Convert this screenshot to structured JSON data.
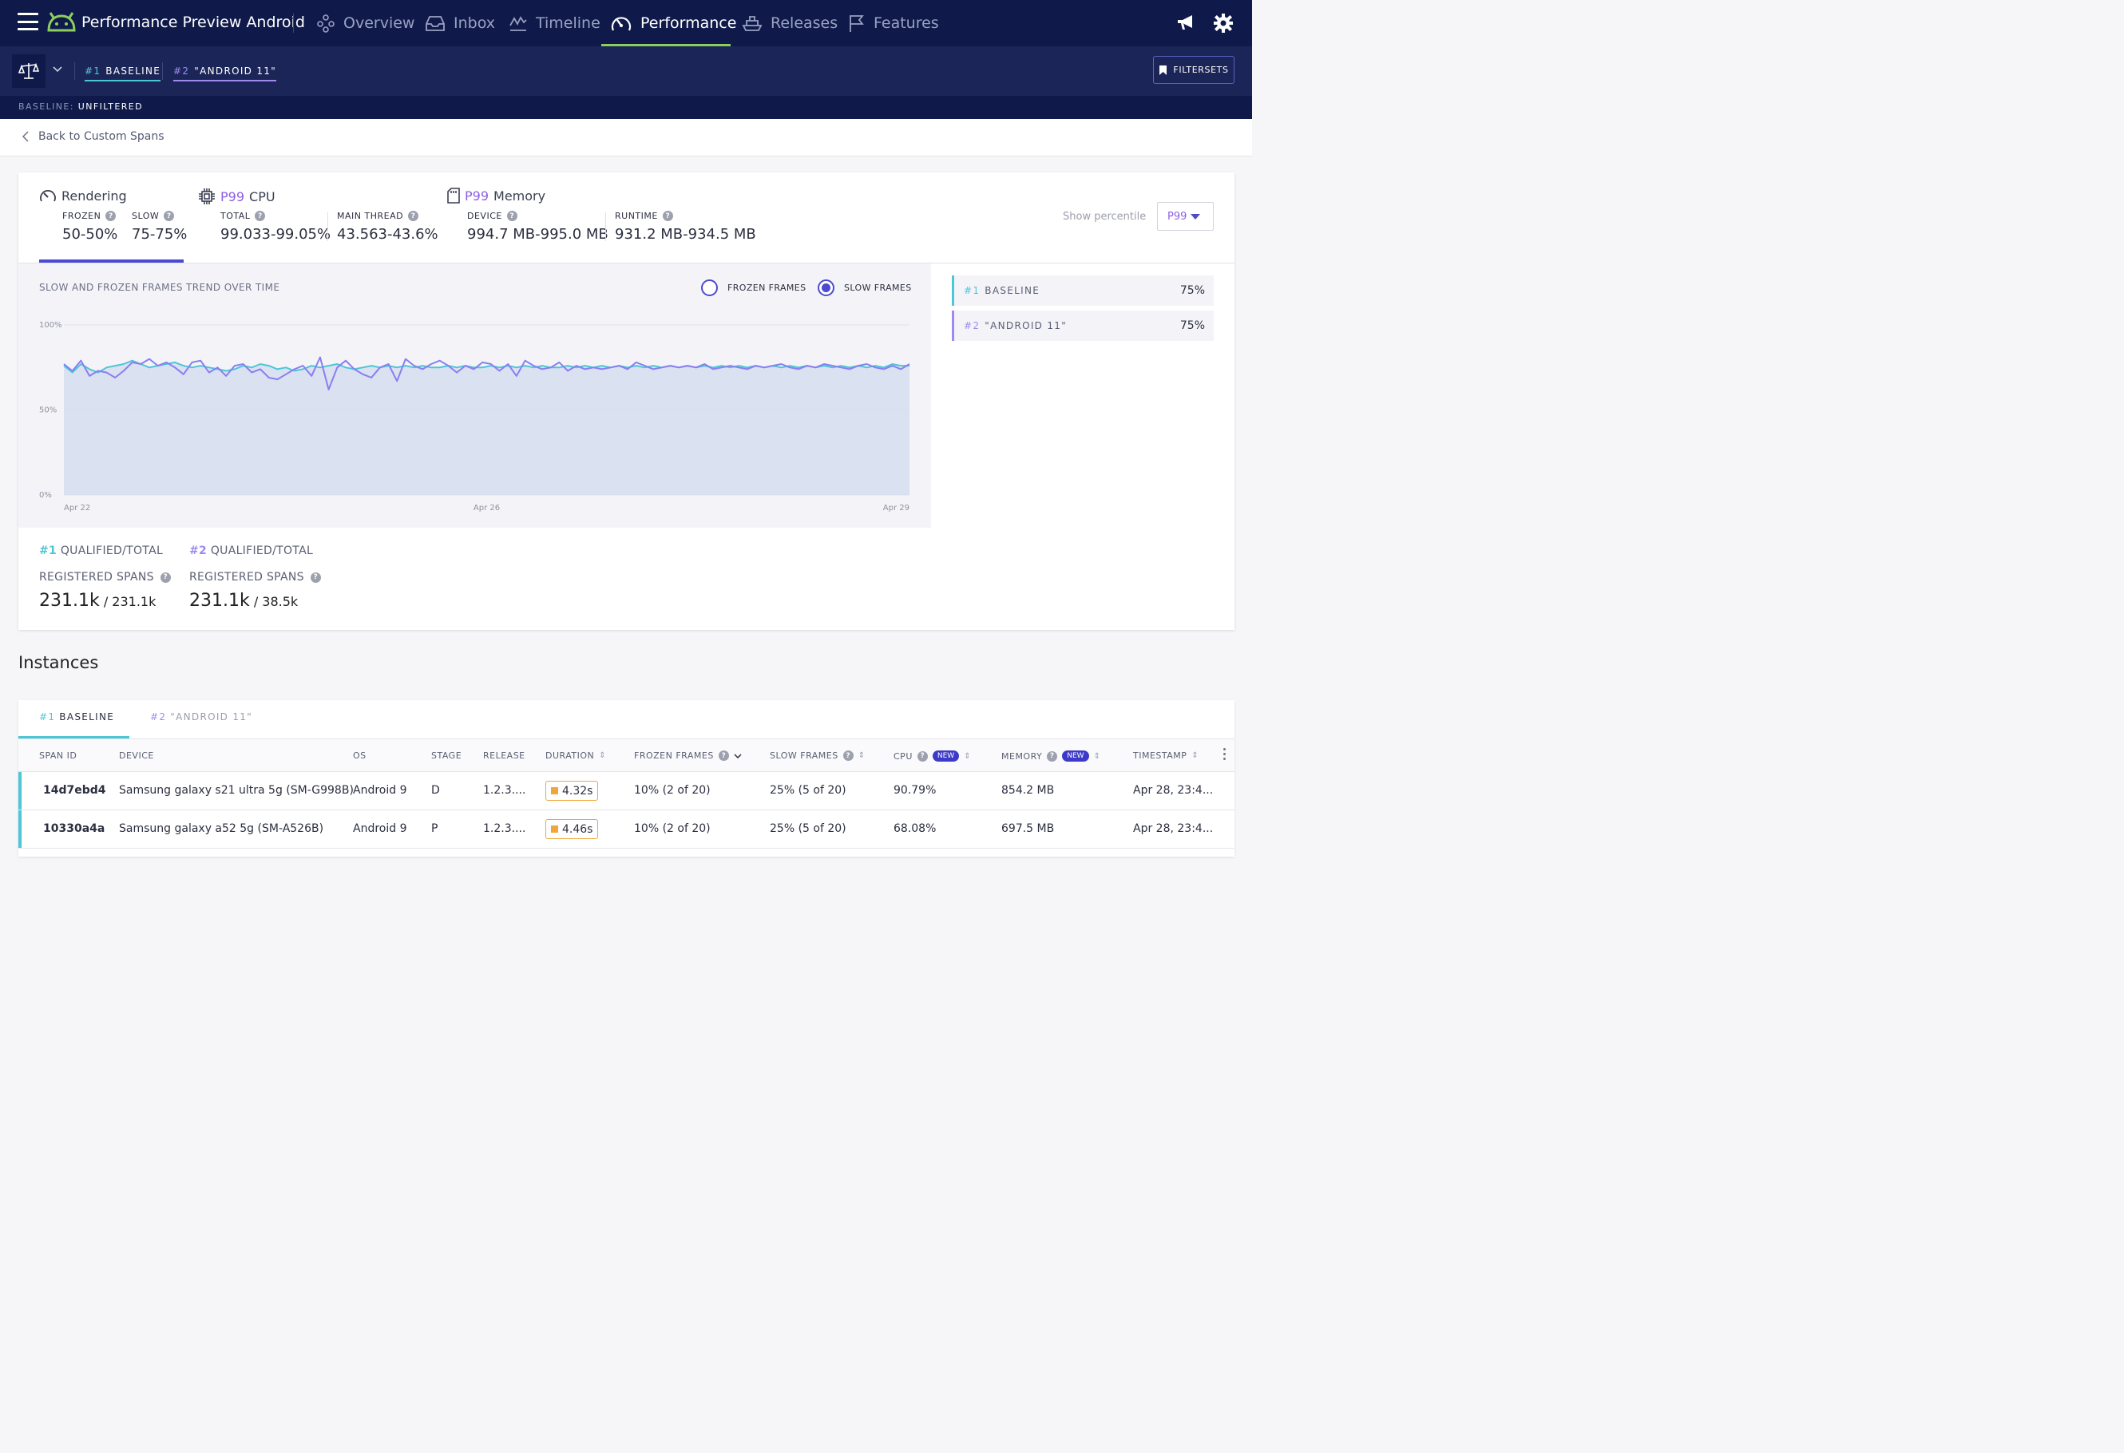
{
  "app": {
    "title": "Performance Preview Android"
  },
  "nav": {
    "tabs": [
      {
        "label": "Overview",
        "icon": "overview-icon"
      },
      {
        "label": "Inbox",
        "icon": "inbox-icon"
      },
      {
        "label": "Timeline",
        "icon": "timeline-icon"
      },
      {
        "label": "Performance",
        "icon": "performance-gauge-icon",
        "active": true
      },
      {
        "label": "Releases",
        "icon": "releases-ship-icon"
      },
      {
        "label": "Features",
        "icon": "features-flag-icon"
      }
    ]
  },
  "compare": {
    "tab1_num": "#1",
    "tab1_label": "BASELINE",
    "tab2_num": "#2",
    "tab2_label": "\"ANDROID 11\"",
    "filtersets_label": "FILTERSETS"
  },
  "baseline_bar": {
    "prefix": "BASELINE:",
    "value": "UNFILTERED"
  },
  "back_link": "Back to Custom Spans",
  "metrics": {
    "rendering": {
      "title": "Rendering",
      "frozen_label": "FROZEN",
      "frozen_value": "50-50%",
      "slow_label": "SLOW",
      "slow_value": "75-75%"
    },
    "cpu": {
      "pct": "P99",
      "title": "CPU",
      "total_label": "TOTAL",
      "total_value": "99.033-99.05%",
      "main_label": "MAIN THREAD",
      "main_value": "43.563-43.6%"
    },
    "memory": {
      "pct": "P99",
      "title": "Memory",
      "device_label": "DEVICE",
      "device_value": "994.7 MB-995.0 MB",
      "runtime_label": "RUNTIME",
      "runtime_value": "931.2 MB-934.5 MB"
    },
    "show_percentile_label": "Show percentile",
    "percentile_value": "P99"
  },
  "chart_data": {
    "type": "area",
    "title": "SLOW AND FROZEN FRAMES TREND OVER TIME",
    "legend": [
      {
        "label": "FROZEN FRAMES",
        "selected": false
      },
      {
        "label": "SLOW FRAMES",
        "selected": true
      }
    ],
    "y_ticks": [
      "100%",
      "50%",
      "0%"
    ],
    "ylim": [
      0,
      100
    ],
    "x_ticks": [
      "Apr 22",
      "Apr 26",
      "Apr 29"
    ],
    "series": [
      {
        "name": "#1 BASELINE",
        "color": "#4dc6d6",
        "values": [
          76,
          72,
          77,
          74,
          72,
          75,
          76,
          77,
          79,
          77,
          75,
          76,
          77,
          78,
          76,
          75,
          76,
          75,
          74,
          73,
          74,
          76,
          75,
          77,
          76,
          74,
          75,
          73,
          74,
          76,
          75,
          76,
          77,
          75,
          74,
          75,
          76,
          75,
          76,
          75,
          76,
          75,
          76,
          75,
          75,
          76,
          75,
          76,
          75,
          75,
          76,
          75,
          76,
          75,
          76,
          75,
          76,
          75,
          75,
          76,
          75,
          76,
          75,
          76,
          75,
          76,
          75,
          76,
          75,
          76,
          75,
          76,
          75,
          76,
          75,
          76,
          75,
          76,
          75,
          76,
          75,
          76,
          75,
          76,
          75,
          76,
          75,
          76,
          75,
          76,
          75,
          76,
          75,
          76,
          75,
          76,
          75,
          77,
          76,
          76
        ]
      },
      {
        "name": "#2 \"ANDROID 11\"",
        "color": "#8a7ef0",
        "values": [
          77,
          73,
          79,
          70,
          73,
          72,
          69,
          73,
          78,
          77,
          80,
          76,
          78,
          75,
          71,
          78,
          79,
          72,
          75,
          70,
          76,
          77,
          72,
          74,
          69,
          68,
          71,
          74,
          76,
          70,
          81,
          62,
          75,
          79,
          74,
          71,
          69,
          75,
          77,
          67,
          80,
          76,
          74,
          77,
          79,
          76,
          72,
          76,
          74,
          78,
          77,
          73,
          77,
          70,
          79,
          76,
          74,
          75,
          78,
          73,
          76,
          74,
          75,
          74,
          75,
          76,
          74,
          78,
          76,
          74,
          75,
          76,
          75,
          76,
          75,
          77,
          74,
          75,
          76,
          75,
          74,
          76,
          75,
          76,
          77,
          75,
          74,
          76,
          75,
          77,
          76,
          75,
          74,
          76,
          77,
          75,
          74,
          76,
          74,
          77
        ]
      }
    ],
    "side_values": [
      {
        "num": "#1",
        "label": "BASELINE",
        "value": "75%"
      },
      {
        "num": "#2",
        "label": "\"ANDROID 11\"",
        "value": "75%"
      }
    ]
  },
  "spans": {
    "b1": {
      "num": "#1",
      "line1": "QUALIFIED/TOTAL",
      "line2": "REGISTERED SPANS",
      "qualified": "231.1k",
      "total": "/ 231.1k"
    },
    "b2": {
      "num": "#2",
      "line1": "QUALIFIED/TOTAL",
      "line2": "REGISTERED SPANS",
      "qualified": "231.1k",
      "total": "/ 38.5k"
    }
  },
  "instances": {
    "title": "Instances",
    "tab1_num": "#1",
    "tab1_label": "BASELINE",
    "tab2_num": "#2",
    "tab2_label": "\"ANDROID 11\"",
    "new_badge": "NEW",
    "columns": {
      "span_id": "SPAN ID",
      "device": "DEVICE",
      "os": "OS",
      "stage": "STAGE",
      "release": "RELEASE",
      "duration": "DURATION",
      "frozen": "FROZEN FRAMES",
      "slow": "SLOW FRAMES",
      "cpu": "CPU",
      "memory": "MEMORY",
      "timestamp": "TIMESTAMP"
    },
    "rows": [
      {
        "span_id": "14d7ebd4",
        "device": "Samsung galaxy s21 ultra 5g (SM-G998B)",
        "os": "Android 9",
        "stage": "D",
        "release": "1.2.3....",
        "duration": "4.32s",
        "frozen": "10% (2 of 20)",
        "slow": "25% (5 of 20)",
        "cpu": "90.79%",
        "memory": "854.2 MB",
        "timestamp": "Apr 28, 23:4..."
      },
      {
        "span_id": "10330a4a",
        "device": "Samsung galaxy a52 5g (SM-A526B)",
        "os": "Android 9",
        "stage": "P",
        "release": "1.2.3....",
        "duration": "4.46s",
        "frozen": "10% (2 of 20)",
        "slow": "25% (5 of 20)",
        "cpu": "68.08%",
        "memory": "697.5 MB",
        "timestamp": "Apr 28, 23:4..."
      }
    ]
  }
}
